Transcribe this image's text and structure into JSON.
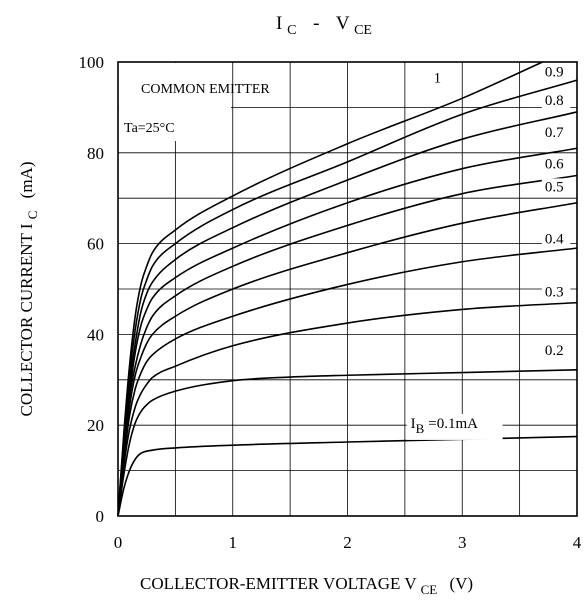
{
  "chart_data": {
    "type": "line",
    "title": {
      "main": "I",
      "main_sub": "C",
      "sep": "-",
      "second": "V",
      "second_sub": "CE"
    },
    "xlabel": {
      "pre": "COLLECTOR-EMITTER VOLTAGE V",
      "sub": "CE",
      "post": "(V)"
    },
    "ylabel": {
      "pre": "COLLECTOR CURRENT I",
      "sub": "C",
      "post": "(mA)"
    },
    "xlim": [
      0,
      4
    ],
    "ylim": [
      0,
      100
    ],
    "x_ticks": [
      "0",
      "1",
      "2",
      "3",
      "4"
    ],
    "y_ticks": [
      "0",
      "20",
      "40",
      "60",
      "80",
      "100"
    ],
    "grid": true,
    "legend_box": {
      "line1": "COMMON EMITTER",
      "line2": "Ta=25°C"
    },
    "series": [
      {
        "name": "1",
        "points": [
          [
            0,
            0
          ],
          [
            0.05,
            18
          ],
          [
            0.1,
            33
          ],
          [
            0.15,
            44
          ],
          [
            0.2,
            51
          ],
          [
            0.25,
            55
          ],
          [
            0.3,
            58
          ],
          [
            0.5,
            63
          ],
          [
            1,
            70.5
          ],
          [
            2,
            82
          ],
          [
            3,
            92
          ],
          [
            3.7,
            100
          ]
        ]
      },
      {
        "name": "0.9",
        "points": [
          [
            0,
            0
          ],
          [
            0.05,
            17
          ],
          [
            0.1,
            31
          ],
          [
            0.15,
            41
          ],
          [
            0.2,
            48
          ],
          [
            0.25,
            52
          ],
          [
            0.3,
            55
          ],
          [
            0.5,
            60
          ],
          [
            1,
            67.5
          ],
          [
            2,
            78
          ],
          [
            3,
            88.5
          ],
          [
            4,
            96
          ]
        ]
      },
      {
        "name": "0.8",
        "points": [
          [
            0,
            0
          ],
          [
            0.05,
            16
          ],
          [
            0.1,
            29
          ],
          [
            0.15,
            38
          ],
          [
            0.2,
            45
          ],
          [
            0.25,
            49
          ],
          [
            0.3,
            51.5
          ],
          [
            0.5,
            56.5
          ],
          [
            1,
            63.5
          ],
          [
            2,
            74
          ],
          [
            3,
            83
          ],
          [
            4,
            89
          ]
        ]
      },
      {
        "name": "0.7",
        "points": [
          [
            0,
            0
          ],
          [
            0.05,
            15
          ],
          [
            0.1,
            27
          ],
          [
            0.15,
            36
          ],
          [
            0.2,
            42
          ],
          [
            0.25,
            45.5
          ],
          [
            0.3,
            48
          ],
          [
            0.5,
            52.5
          ],
          [
            1,
            59
          ],
          [
            2,
            69
          ],
          [
            3,
            76.5
          ],
          [
            4,
            81
          ]
        ]
      },
      {
        "name": "0.6",
        "points": [
          [
            0,
            0
          ],
          [
            0.05,
            14
          ],
          [
            0.1,
            26
          ],
          [
            0.15,
            33
          ],
          [
            0.2,
            38
          ],
          [
            0.25,
            41.5
          ],
          [
            0.3,
            44
          ],
          [
            0.5,
            48.5
          ],
          [
            1,
            55
          ],
          [
            2,
            64
          ],
          [
            3,
            71
          ],
          [
            4,
            75
          ]
        ]
      },
      {
        "name": "0.5",
        "points": [
          [
            0,
            0
          ],
          [
            0.05,
            13
          ],
          [
            0.1,
            24
          ],
          [
            0.15,
            31
          ],
          [
            0.2,
            35
          ],
          [
            0.25,
            38
          ],
          [
            0.3,
            40
          ],
          [
            0.5,
            44
          ],
          [
            1,
            50
          ],
          [
            2,
            58
          ],
          [
            3,
            64.5
          ],
          [
            4,
            69
          ]
        ]
      },
      {
        "name": "0.4",
        "points": [
          [
            0,
            0
          ],
          [
            0.05,
            12
          ],
          [
            0.1,
            22
          ],
          [
            0.15,
            28
          ],
          [
            0.2,
            31.5
          ],
          [
            0.25,
            34
          ],
          [
            0.3,
            35.5
          ],
          [
            0.5,
            39
          ],
          [
            1,
            44
          ],
          [
            2,
            51
          ],
          [
            3,
            56
          ],
          [
            4,
            59
          ]
        ]
      },
      {
        "name": "0.3",
        "points": [
          [
            0,
            0
          ],
          [
            0.05,
            11
          ],
          [
            0.1,
            19
          ],
          [
            0.15,
            24
          ],
          [
            0.2,
            27
          ],
          [
            0.25,
            29
          ],
          [
            0.3,
            30.5
          ],
          [
            0.5,
            33
          ],
          [
            1,
            37.5
          ],
          [
            2,
            42.5
          ],
          [
            3,
            45.5
          ],
          [
            4,
            47
          ]
        ]
      },
      {
        "name": "0.2",
        "points": [
          [
            0,
            0
          ],
          [
            0.05,
            9
          ],
          [
            0.1,
            16
          ],
          [
            0.15,
            20.5
          ],
          [
            0.2,
            23
          ],
          [
            0.25,
            24.5
          ],
          [
            0.3,
            25.5
          ],
          [
            0.5,
            27.5
          ],
          [
            1,
            29.8
          ],
          [
            1.5,
            30.6
          ],
          [
            2,
            31
          ],
          [
            3,
            31.6
          ],
          [
            4,
            32.2
          ]
        ]
      },
      {
        "name": "0.1mA",
        "points": [
          [
            0,
            0
          ],
          [
            0.05,
            6
          ],
          [
            0.1,
            10
          ],
          [
            0.15,
            12.5
          ],
          [
            0.2,
            13.8
          ],
          [
            0.3,
            14.5
          ],
          [
            0.5,
            15
          ],
          [
            1,
            15.6
          ],
          [
            2,
            16.3
          ],
          [
            3,
            16.9
          ],
          [
            4,
            17.5
          ]
        ]
      }
    ],
    "curve_labels": [
      {
        "text": "1",
        "x": 2.75,
        "y": 95.5
      },
      {
        "text": "0.9",
        "x": 3.72,
        "y": 96.8
      },
      {
        "text": "0.8",
        "x": 3.72,
        "y": 90.5
      },
      {
        "text": "0.7",
        "x": 3.72,
        "y": 83.5
      },
      {
        "text": "0.6",
        "x": 3.72,
        "y": 76.5
      },
      {
        "text": "0.5",
        "x": 3.72,
        "y": 71.5
      },
      {
        "text": "0.4",
        "x": 3.72,
        "y": 60.0
      },
      {
        "text": "0.3",
        "x": 3.72,
        "y": 48.3
      },
      {
        "text": "0.2",
        "x": 3.72,
        "y": 35.5
      }
    ],
    "ib_label": {
      "pre": "I",
      "sub": "B",
      "post": "=0.1mA",
      "x": 2.55,
      "y": 19.4
    }
  }
}
